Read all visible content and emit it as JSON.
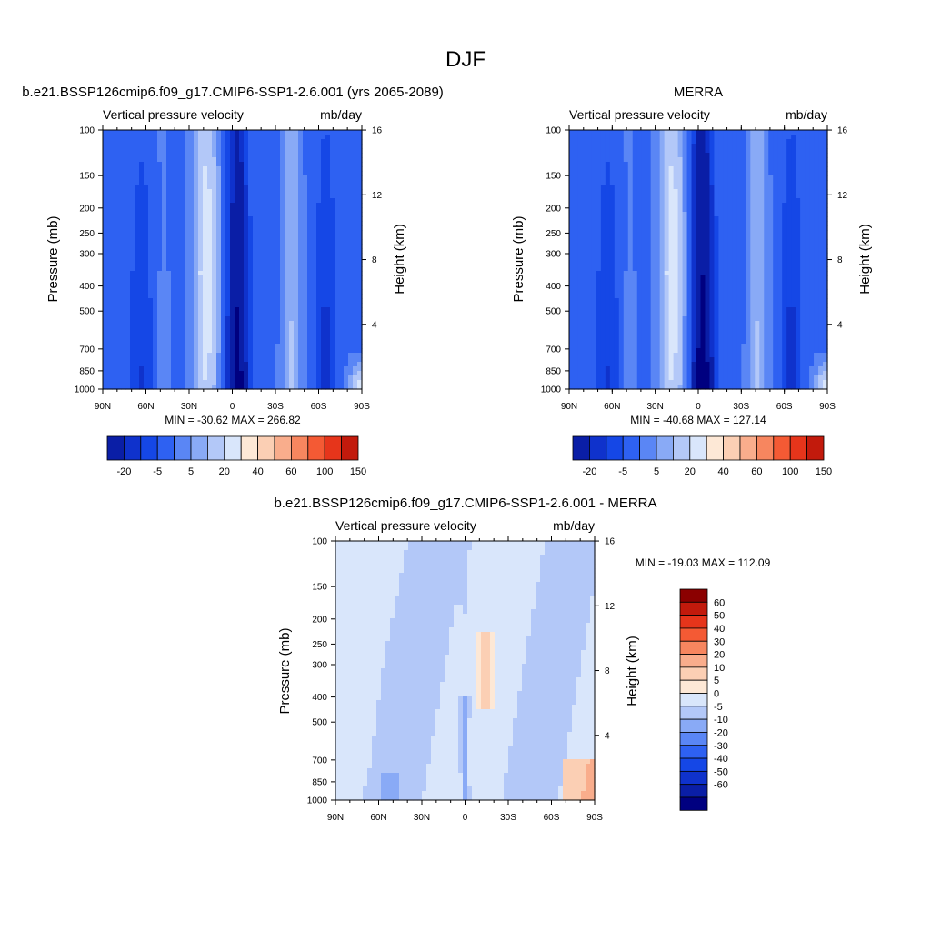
{
  "figure_title": "DJF",
  "colors": {
    "blues_panel": [
      "#000080",
      "#0a1ea6",
      "#0f32cc",
      "#1547e6",
      "#2e61f2",
      "#5a86f5",
      "#89aaf6",
      "#b3c8f8",
      "#d9e6fb"
    ],
    "reds_panel": [
      "#fde8d6",
      "#fbcfb4",
      "#f9ad8c",
      "#f7865f",
      "#f45a34",
      "#e6351b",
      "#c21a0c",
      "#8b0000"
    ],
    "diff_blues": [
      "#000080",
      "#0a1ea6",
      "#0f32cc",
      "#1547e6",
      "#2e61f2",
      "#5a86f5",
      "#89aaf6",
      "#b3c8f8",
      "#d9e6fb"
    ],
    "diff_reds": [
      "#fde8d6",
      "#fbcfb4",
      "#f9ad8c",
      "#f7865f",
      "#f45a34",
      "#e6351b",
      "#c21a0c",
      "#8b0000"
    ]
  },
  "chart_data": [
    {
      "type": "heatmap",
      "title": "b.e21.BSSP126cmip6.f09_g17.CMIP6-SSP1-2.6.001 (yrs 2065-2089)",
      "left_string": "Vertical pressure velocity",
      "right_string": "mb/day",
      "ylabel": "Pressure (mb)",
      "y2label": "Height (km)",
      "x_ticks": [
        "90N",
        "60N",
        "30N",
        "0",
        "30S",
        "60S",
        "90S"
      ],
      "y_ticks": [
        "100",
        "150",
        "200",
        "250",
        "300",
        "400",
        "500",
        "700",
        "850",
        "1000"
      ],
      "y2_ticks": [
        "16",
        "12",
        "8",
        "4"
      ],
      "min_max": "MIN = -30.62  MAX = 266.82",
      "colorbar_labels": [
        "-20",
        "-5",
        "5",
        "20",
        "40",
        "60",
        "100",
        "150"
      ],
      "x_range": [
        90,
        -90
      ],
      "y_range": [
        1000,
        100
      ]
    },
    {
      "type": "heatmap",
      "title": "MERRA",
      "left_string": "Vertical pressure velocity",
      "right_string": "mb/day",
      "ylabel": "Pressure (mb)",
      "y2label": "Height (km)",
      "x_ticks": [
        "90N",
        "60N",
        "30N",
        "0",
        "30S",
        "60S",
        "90S"
      ],
      "y_ticks": [
        "100",
        "150",
        "200",
        "250",
        "300",
        "400",
        "500",
        "700",
        "850",
        "1000"
      ],
      "y2_ticks": [
        "16",
        "12",
        "8",
        "4"
      ],
      "min_max": "MIN = -40.68  MAX = 127.14",
      "colorbar_labels": [
        "-20",
        "-5",
        "5",
        "20",
        "40",
        "60",
        "100",
        "150"
      ],
      "x_range": [
        90,
        -90
      ],
      "y_range": [
        1000,
        100
      ]
    },
    {
      "type": "heatmap",
      "title": "b.e21.BSSP126cmip6.f09_g17.CMIP6-SSP1-2.6.001 - MERRA",
      "left_string": "Vertical pressure velocity",
      "right_string": "mb/day",
      "ylabel": "Pressure (mb)",
      "y2label": "Height (km)",
      "x_ticks": [
        "90N",
        "60N",
        "30N",
        "0",
        "30S",
        "60S",
        "90S"
      ],
      "y_ticks": [
        "100",
        "150",
        "200",
        "250",
        "300",
        "400",
        "500",
        "700",
        "850",
        "1000"
      ],
      "y2_ticks": [
        "16",
        "12",
        "8",
        "4"
      ],
      "min_max": "MIN = -19.03  MAX = 112.09",
      "colorbar_labels": [
        "60",
        "50",
        "40",
        "30",
        "20",
        "10",
        "5",
        "0",
        "-5",
        "-10",
        "-20",
        "-30",
        "-40",
        "-50",
        "-60"
      ],
      "x_range": [
        90,
        -90
      ],
      "y_range": [
        1000,
        100
      ]
    }
  ]
}
